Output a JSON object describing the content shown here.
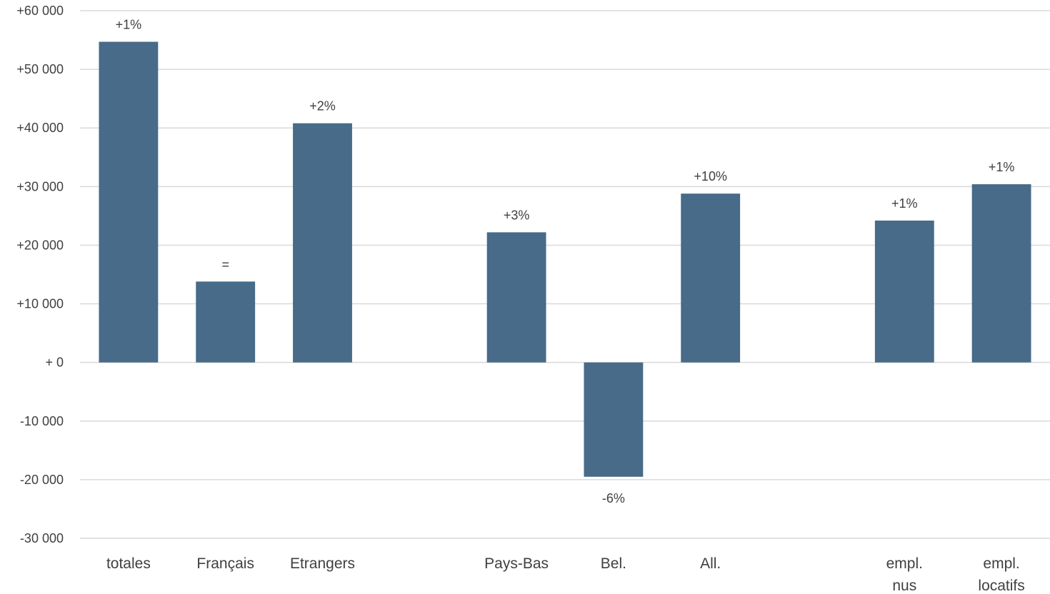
{
  "chart_data": {
    "type": "bar",
    "title": "",
    "xlabel": "",
    "ylabel": "",
    "ylim": [
      -30000,
      60000
    ],
    "yticks": [
      60000,
      50000,
      40000,
      30000,
      20000,
      10000,
      0,
      -10000,
      -20000,
      -30000
    ],
    "ytick_labels": [
      "+60 000",
      "+50 000",
      "+40 000",
      "+30 000",
      "+20 000",
      "+10 000",
      "+ 0",
      "-10 000",
      "-20 000",
      "-30 000"
    ],
    "grid": true,
    "legend": "none",
    "bar_color": "#476b88",
    "categories": [
      [
        "totales"
      ],
      [
        "Français"
      ],
      [
        "Etrangers"
      ],
      [
        ""
      ],
      [
        "Pays-Bas"
      ],
      [
        "Bel."
      ],
      [
        "All."
      ],
      [
        ""
      ],
      [
        "empl.",
        "nus"
      ],
      [
        "empl.",
        "locatifs"
      ]
    ],
    "values": [
      54700,
      13800,
      40800,
      null,
      22200,
      -19500,
      28800,
      null,
      24200,
      30400
    ],
    "data_labels": [
      "+1%",
      "=",
      "+2%",
      "",
      "+3%",
      "-6%",
      "+10%",
      "",
      "+1%",
      "+1%"
    ]
  }
}
